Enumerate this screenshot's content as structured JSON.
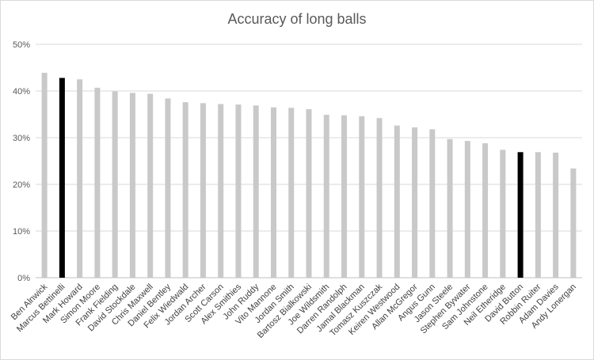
{
  "chart_data": {
    "type": "bar",
    "title": "Accuracy of long balls",
    "xlabel": "",
    "ylabel": "",
    "ylim": [
      0,
      50
    ],
    "yticks": [
      "0%",
      "10%",
      "20%",
      "30%",
      "40%",
      "50%"
    ],
    "grid": true,
    "legend": "none",
    "categories": [
      "Ben Alnwick",
      "Marcus Bettinelli",
      "Mark Howard",
      "Simon Moore",
      "Frank Fielding",
      "David Stockdale",
      "Chris Maxwell",
      "Daniel Bentley",
      "Felix Wiedwald",
      "Jordan Archer",
      "Scott Carson",
      "Alex Smithies",
      "John Ruddy",
      "Vito Mannone",
      "Jordan Smith",
      "Bartosz Bialkowski",
      "Joe Wildsmith",
      "Darren Randolph",
      "Jamal Blackman",
      "Tomasz Kuszczak",
      "Keiren Westwood",
      "Allan McGregor",
      "Angus Gunn",
      "Jason Steele",
      "Stephen Bywater",
      "Sam Johnstone",
      "Neil Etheridge",
      "David Button",
      "Robbin Ruiter",
      "Adam Davies",
      "Andy Lonergan"
    ],
    "values": [
      43.9,
      42.8,
      42.5,
      40.7,
      39.9,
      39.6,
      39.4,
      38.4,
      37.6,
      37.4,
      37.2,
      37.1,
      36.9,
      36.5,
      36.4,
      36.1,
      34.9,
      34.8,
      34.6,
      34.2,
      32.6,
      32.2,
      31.8,
      29.7,
      29.3,
      28.8,
      27.4,
      26.9,
      26.9,
      26.8,
      23.4
    ],
    "highlighted": [
      "Marcus Bettinelli",
      "David Button"
    ],
    "colors": {
      "bar": "#c9c9c9",
      "highlight": "#000000",
      "grid": "#d9d9d9",
      "axis": "#bfbfbf"
    }
  }
}
